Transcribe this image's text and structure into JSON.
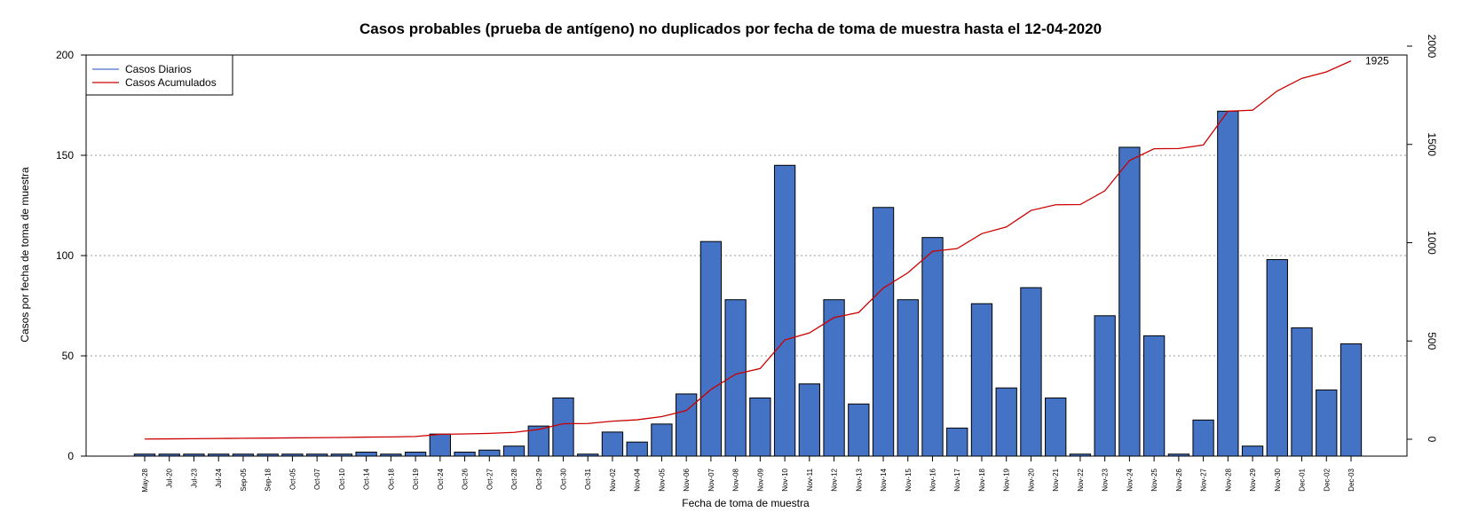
{
  "chart_data": {
    "type": "bar",
    "title": "Casos probables (prueba de antígeno) no duplicados por fecha de toma de muestra hasta el 12-04-2020",
    "xlabel": "Fecha de toma de muestra",
    "ylabel": "Casos por fecha de toma de muestra",
    "ylim": [
      0,
      200
    ],
    "y2lim": [
      0,
      2000
    ],
    "yticks": [
      0,
      50,
      100,
      150,
      200
    ],
    "y2ticks": [
      0,
      500,
      1000,
      1500,
      2000
    ],
    "grid": "horizontal dotted",
    "legend_position": "top-left",
    "categories": [
      "May-28",
      "Jul-20",
      "Jul-23",
      "Jul-24",
      "Sep-05",
      "Sep-18",
      "Oct-05",
      "Oct-07",
      "Oct-10",
      "Oct-14",
      "Oct-18",
      "Oct-19",
      "Oct-24",
      "Oct-26",
      "Oct-27",
      "Oct-28",
      "Oct-29",
      "Oct-30",
      "Oct-31",
      "Nov-02",
      "Nov-04",
      "Nov-05",
      "Nov-06",
      "Nov-07",
      "Nov-08",
      "Nov-09",
      "Nov-10",
      "Nov-11",
      "Nov-12",
      "Nov-13",
      "Nov-14",
      "Nov-15",
      "Nov-16",
      "Nov-17",
      "Nov-18",
      "Nov-19",
      "Nov-20",
      "Nov-21",
      "Nov-22",
      "Nov-23",
      "Nov-24",
      "Nov-25",
      "Nov-26",
      "Nov-27",
      "Nov-28",
      "Nov-29",
      "Nov-30",
      "Dec-01",
      "Dec-02",
      "Dec-03"
    ],
    "series": [
      {
        "name": "Casos Diarios",
        "axis": "left",
        "render": "bar",
        "color": "#4472C4",
        "values": [
          1,
          1,
          1,
          1,
          1,
          1,
          1,
          1,
          1,
          2,
          1,
          2,
          11,
          2,
          3,
          5,
          15,
          29,
          1,
          12,
          7,
          16,
          31,
          107,
          78,
          29,
          145,
          36,
          78,
          26,
          124,
          78,
          109,
          14,
          76,
          34,
          84,
          29,
          1,
          70,
          154,
          60,
          1,
          18,
          172,
          5,
          98,
          64,
          33,
          56
        ]
      },
      {
        "name": "Casos Acumulados",
        "axis": "right",
        "render": "line",
        "color": "#CC0000",
        "values": [
          1,
          2,
          3,
          4,
          5,
          6,
          7,
          8,
          9,
          11,
          12,
          14,
          25,
          27,
          30,
          35,
          50,
          79,
          80,
          92,
          99,
          115,
          146,
          253,
          331,
          360,
          505,
          541,
          619,
          645,
          769,
          847,
          956,
          970,
          1046,
          1080,
          1164,
          1193,
          1194,
          1264,
          1418,
          1478,
          1479,
          1497,
          1669,
          1674,
          1772,
          1836,
          1869,
          1925
        ]
      }
    ],
    "annotations": [
      {
        "text": "1925"
      }
    ]
  }
}
